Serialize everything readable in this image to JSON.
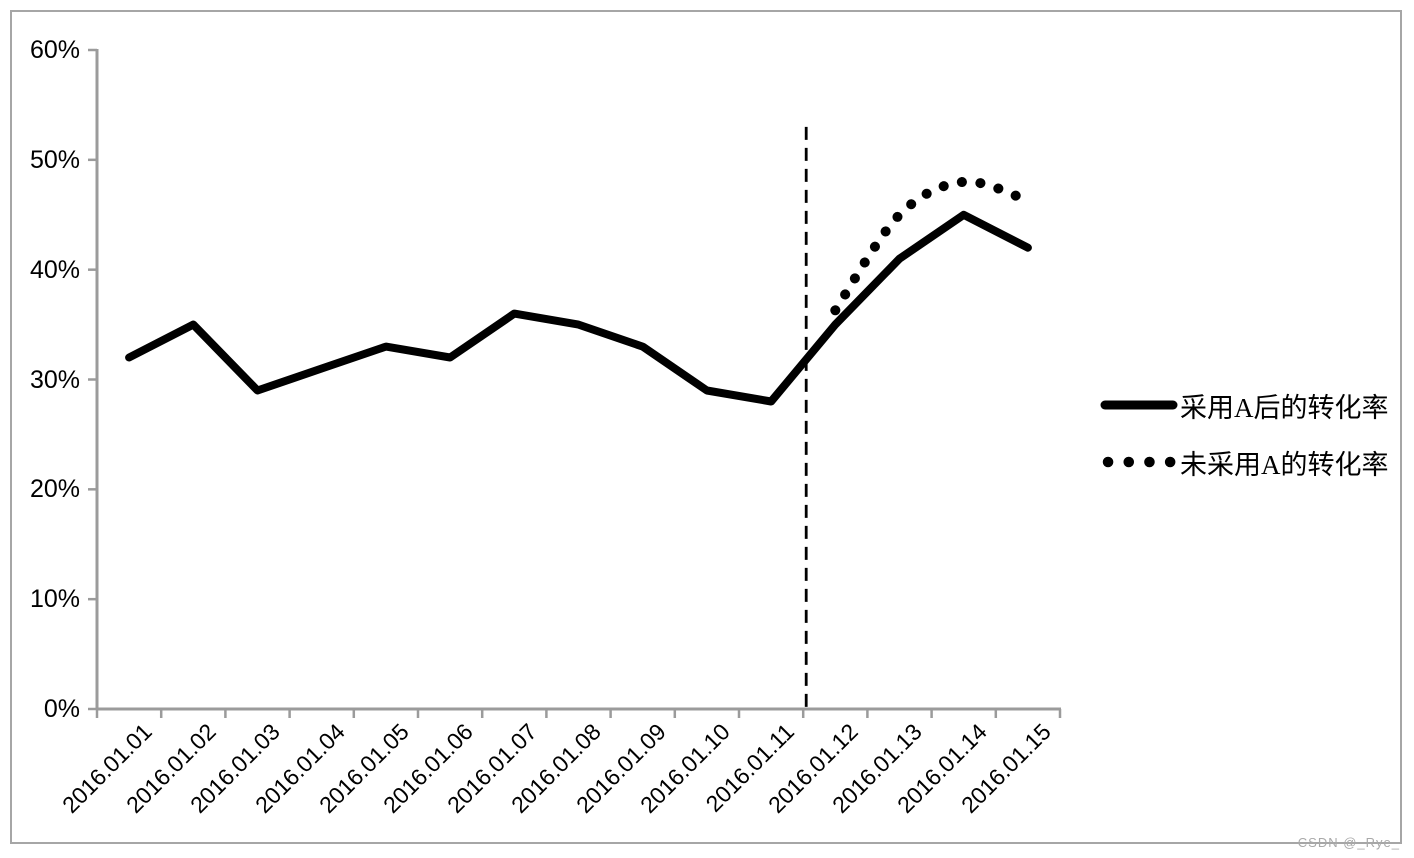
{
  "watermark": "CSDN @_Rye_",
  "chart_data": {
    "type": "line",
    "title": "",
    "xlabel": "",
    "ylabel": "",
    "categories": [
      "2016.01.01",
      "2016.01.02",
      "2016.01.03",
      "2016.01.04",
      "2016.01.05",
      "2016.01.06",
      "2016.01.07",
      "2016.01.08",
      "2016.01.09",
      "2016.01.10",
      "2016.01.11",
      "2016.01.12",
      "2016.01.13",
      "2016.01.14",
      "2016.01.15"
    ],
    "series": [
      {
        "name": "采用A后的转化率",
        "style": "solid",
        "color": "#000000",
        "values": [
          32,
          35,
          29,
          31,
          33,
          32,
          36,
          35,
          33,
          29,
          28,
          35,
          41,
          45,
          42
        ]
      },
      {
        "name": "未采用A的转化率",
        "style": "dotted",
        "smoothed": true,
        "color": "#000000",
        "values": [
          null,
          null,
          null,
          null,
          null,
          null,
          null,
          null,
          null,
          null,
          null,
          36.3,
          45,
          48,
          46.3
        ]
      }
    ],
    "ylim": [
      0,
      60
    ],
    "yticks": [
      "0%",
      "10%",
      "20%",
      "30%",
      "40%",
      "50%",
      "60%"
    ],
    "ytick_values": [
      0,
      10,
      20,
      30,
      40,
      50,
      60
    ],
    "grid": false,
    "legend_position": "right",
    "axis_color": "#9b9b9b",
    "annotation": {
      "type": "vertical-dashed-line",
      "color": "#000000",
      "between_categories": [
        "2016.01.11",
        "2016.01.12"
      ],
      "y_top_percent": 53
    }
  },
  "legend": {
    "item1": "采用A后的转化率",
    "item2": "未采用A的转化率"
  }
}
